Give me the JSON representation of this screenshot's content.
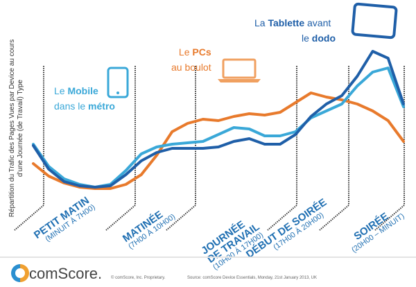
{
  "chart_data": {
    "type": "line",
    "title": "",
    "ylabel": "Répartition du Trafic des Pages Vues par Device au cours d'une Journée (de Travail) Type",
    "xlabel": "",
    "x": [
      0,
      1,
      2,
      3,
      4,
      5,
      6,
      7,
      8,
      9,
      10,
      11,
      12,
      13,
      14,
      15,
      16,
      17,
      18,
      19,
      20,
      21,
      22,
      23,
      24
    ],
    "series": [
      {
        "device": "tablet",
        "color": "#1f5fa8",
        "values": [
          40,
          23,
          14,
          11,
          10,
          11,
          19,
          29,
          35,
          38,
          38,
          38,
          39,
          43,
          45,
          41,
          41,
          48,
          61,
          70,
          76,
          90,
          108,
          103,
          70
        ]
      },
      {
        "device": "mobile",
        "color": "#3aa8d8",
        "values": [
          41,
          25,
          16,
          12,
          10,
          12,
          22,
          34,
          39,
          41,
          42,
          43,
          48,
          53,
          52,
          47,
          47,
          50,
          60,
          65,
          70,
          83,
          93,
          96,
          68
        ]
      },
      {
        "device": "pc",
        "color": "#e87a2c",
        "values": [
          27,
          18,
          13,
          10,
          9,
          9,
          12,
          19,
          33,
          50,
          56,
          59,
          58,
          61,
          63,
          62,
          64,
          71,
          78,
          75,
          73,
          70,
          65,
          58,
          43
        ]
      }
    ],
    "grid": false,
    "period_boundaries_hours": [
      0,
      7,
      10,
      17,
      20,
      24
    ],
    "periods": [
      {
        "title": "PETIT MATIN",
        "sub": "(MINUIT À 7H00)"
      },
      {
        "title": "MATINÉE",
        "sub": "(7H00 À 10H00)"
      },
      {
        "title": "JOURNÉE\nDE TRAVAIL",
        "title1": "JOURNÉE",
        "title2": "DE TRAVAIL",
        "sub": "(10H00 À 17H00)"
      },
      {
        "title": "DÉBUT DE SOIRÉE",
        "sub": "(17H00 À 20H00)"
      },
      {
        "title": "SOIRÉE",
        "sub": "(20H00 – MINUIT)"
      }
    ]
  },
  "annotations": {
    "tablet": {
      "pre": "La ",
      "bold": "Tablette",
      "post": " avant",
      "line2_pre": "le ",
      "line2_bold": "dodo",
      "icon": "tablet-icon"
    },
    "pc": {
      "pre": "Le ",
      "bold": "PCs",
      "line2": "au boulot",
      "icon": "laptop-icon"
    },
    "mobile": {
      "pre": "Le ",
      "bold": "Mobile",
      "line2_pre": "dans le ",
      "line2_bold": "métro",
      "icon": "phone-icon"
    }
  },
  "footer": {
    "brand": "comScore.",
    "copyright": "© comScore, Inc.   Proprietary.",
    "source": "Source: comScore Device Essentials, Monday, 21st January 2013, UK"
  }
}
